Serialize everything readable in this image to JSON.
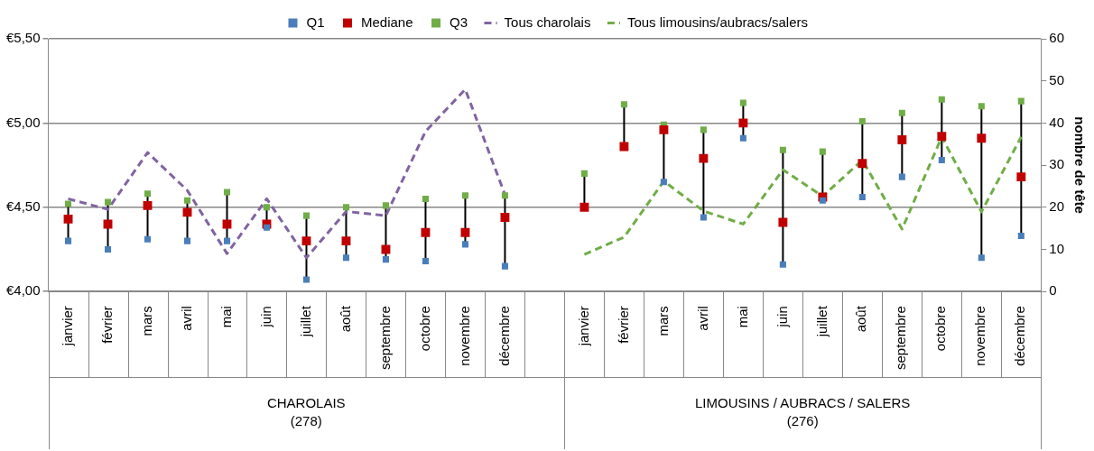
{
  "chart_data": {
    "type": "scatter",
    "categories": [
      "janvier",
      "février",
      "mars",
      "avril",
      "mai",
      "juin",
      "juillet",
      "août",
      "septembre",
      "octobre",
      "novembre",
      "décembre",
      null,
      "janvier",
      "février",
      "mars",
      "avril",
      "mai",
      "juin",
      "juillet",
      "août",
      "septembre",
      "octobre",
      "novembre",
      "décembre"
    ],
    "series": [
      {
        "name": "Q1",
        "marker": "square",
        "color": "#4a7ebb",
        "values": [
          4.3,
          4.25,
          4.31,
          4.3,
          4.3,
          4.38,
          4.07,
          4.2,
          4.19,
          4.18,
          4.28,
          4.15,
          null,
          null,
          null,
          4.65,
          4.44,
          4.91,
          4.16,
          4.54,
          4.56,
          4.68,
          4.78,
          4.2,
          4.33
        ]
      },
      {
        "name": "Mediane",
        "marker": "square",
        "color": "#c00000",
        "values": [
          4.43,
          4.4,
          4.51,
          4.47,
          4.4,
          4.4,
          4.3,
          4.3,
          4.25,
          4.35,
          4.35,
          4.44,
          null,
          4.5,
          4.86,
          4.96,
          4.79,
          5.0,
          4.41,
          4.56,
          4.76,
          4.9,
          4.92,
          4.91,
          4.68
        ]
      },
      {
        "name": "Q3",
        "marker": "square",
        "color": "#70ad47",
        "values": [
          4.52,
          4.53,
          4.58,
          4.54,
          4.59,
          4.5,
          4.45,
          4.5,
          4.51,
          4.55,
          4.57,
          4.57,
          null,
          4.7,
          5.11,
          4.99,
          4.96,
          5.12,
          4.84,
          4.83,
          5.01,
          5.06,
          5.14,
          5.1,
          5.13
        ]
      },
      {
        "name": "Tous charolais",
        "type": "line",
        "axis": "y2",
        "line_style": "dashed",
        "color": "#8064a2",
        "values": [
          22,
          19.5,
          33,
          24,
          9,
          22,
          8,
          19,
          18,
          38,
          48,
          23,
          null,
          null,
          null,
          null,
          null,
          null,
          null,
          null,
          null,
          null,
          null,
          null,
          null
        ]
      },
      {
        "name": "Tous limousins/aubracs/salers",
        "type": "line",
        "axis": "y2",
        "line_style": "dashed",
        "color": "#70ad47",
        "values": [
          null,
          null,
          null,
          null,
          null,
          null,
          null,
          null,
          null,
          null,
          null,
          null,
          null,
          8.8,
          12.9,
          26.2,
          19.1,
          16,
          28.9,
          22.6,
          31.2,
          14.8,
          36.7,
          18.9,
          36.7
        ]
      }
    ],
    "ylim": [
      4.0,
      5.5
    ],
    "yticks": [
      {
        "value": 4.0,
        "label": "€4,00"
      },
      {
        "value": 4.5,
        "label": "€4,50"
      },
      {
        "value": 5.0,
        "label": "€5,00"
      },
      {
        "value": 5.5,
        "label": "€5,50"
      }
    ],
    "y2label": "nombre de tête",
    "y2lim": [
      0,
      60
    ],
    "y2ticks": [
      0,
      10,
      20,
      30,
      40,
      50,
      60
    ],
    "grid": "y",
    "legend": "top",
    "annotations": [
      "CHAROLAIS (278)",
      "LIMOUSINS / AUBRACS / SALERS (276)"
    ]
  }
}
